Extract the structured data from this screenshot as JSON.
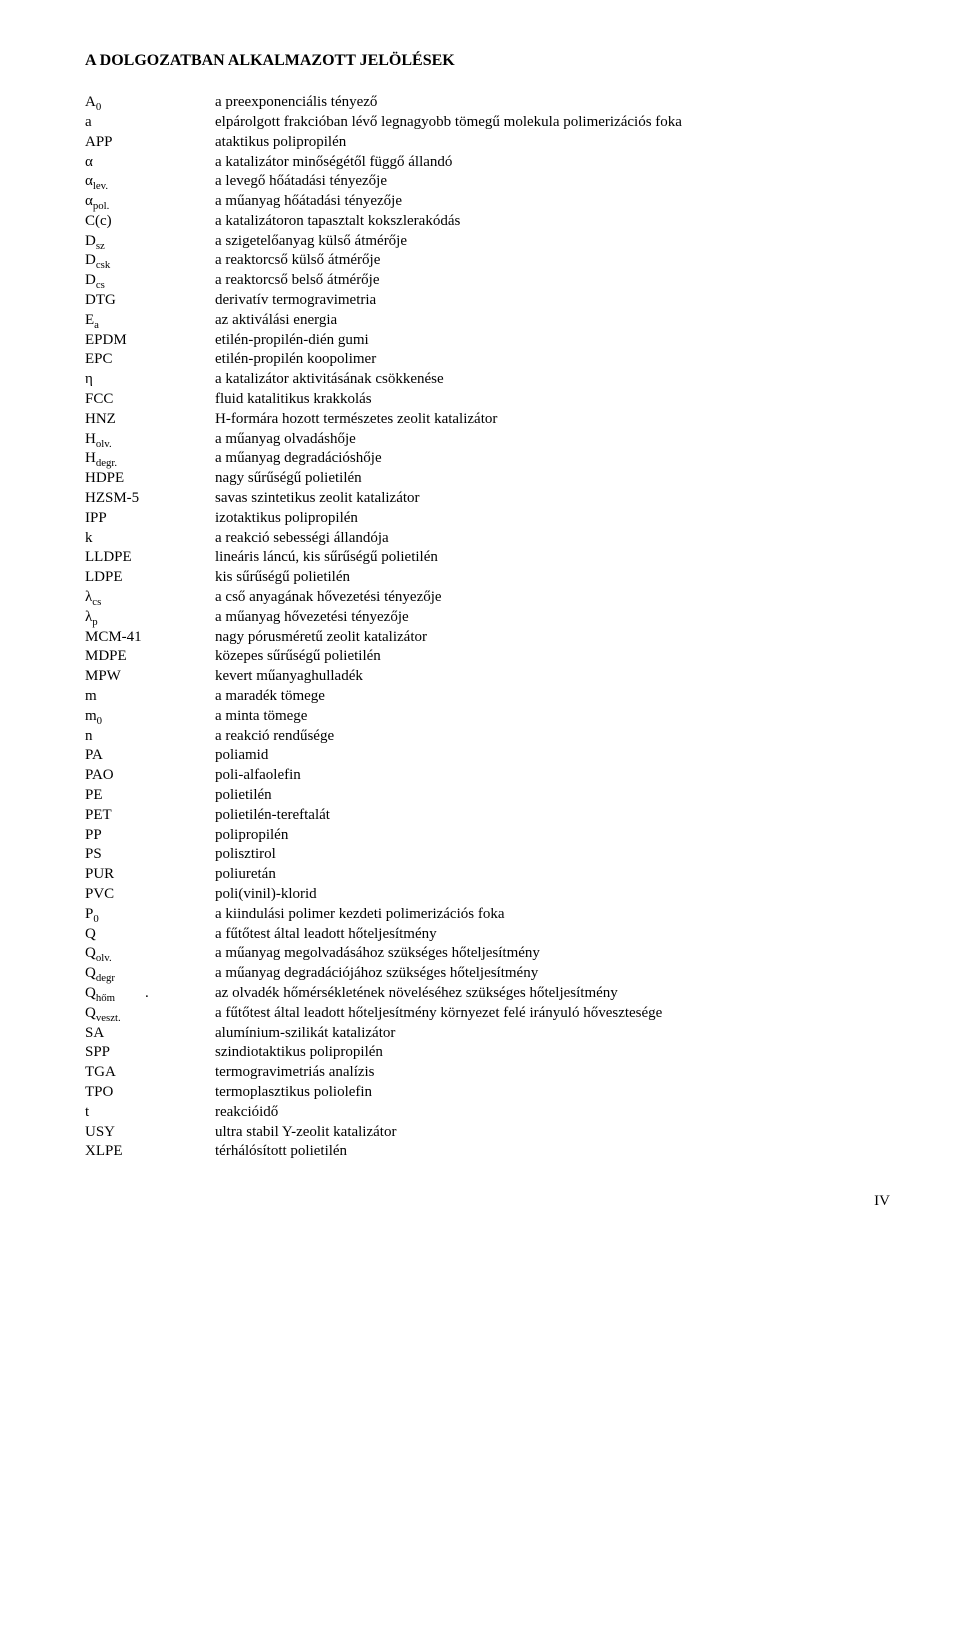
{
  "title": "A DOLGOZATBAN ALKALMAZOTT JELÖLÉSEK",
  "page_number": "IV",
  "rows": [
    {
      "sym_html": "A<span class='sub'>0</span>",
      "def": "a preexponenciális tényező"
    },
    {
      "sym_html": "a",
      "def": "elpárolgott frakcióban lévő legnagyobb tömegű molekula polimerizációs foka"
    },
    {
      "sym_html": "APP",
      "def": "ataktikus polipropilén"
    },
    {
      "sym_html": "α",
      "def": "a katalizátor minőségétől függő állandó"
    },
    {
      "sym_html": "α<span class='sub'>lev.</span>",
      "def": "a levegő hőátadási tényezője"
    },
    {
      "sym_html": "α<span class='sub'>pol.</span>",
      "def": "a műanyag hőátadási tényezője"
    },
    {
      "sym_html": "C(c)",
      "def": "a katalizátoron tapasztalt kokszlerakódás"
    },
    {
      "sym_html": "D<span class='sub'>sz</span>",
      "def": "a szigetelőanyag külső átmérője"
    },
    {
      "sym_html": "D<span class='sub'>csk</span>",
      "def": "a reaktorcső külső átmérője"
    },
    {
      "sym_html": "D<span class='sub'>cs</span>",
      "def": "a reaktorcső belső átmérője"
    },
    {
      "sym_html": "DTG",
      "def": "derivatív termogravimetria"
    },
    {
      "sym_html": "E<span class='sub'>a</span>",
      "def": "az aktiválási energia"
    },
    {
      "sym_html": "EPDM",
      "def": "etilén-propilén-dién gumi"
    },
    {
      "sym_html": "EPC",
      "def": "etilén-propilén koopolimer"
    },
    {
      "sym_html": "η",
      "def": "a katalizátor aktivitásának csökkenése"
    },
    {
      "sym_html": "FCC",
      "def": "fluid katalitikus krakkolás"
    },
    {
      "sym_html": "HNZ",
      "def": "H-formára hozott természetes zeolit katalizátor"
    },
    {
      "sym_html": "H<span class='sub'>olv.</span>",
      "def": "a műanyag olvadáshője"
    },
    {
      "sym_html": "H<span class='sub'>degr.</span>",
      "def": "a műanyag degradációshője"
    },
    {
      "sym_html": "HDPE",
      "def": "nagy sűrűségű polietilén"
    },
    {
      "sym_html": "HZSM-5",
      "def": "savas szintetikus zeolit katalizátor"
    },
    {
      "sym_html": "IPP",
      "def": "izotaktikus polipropilén"
    },
    {
      "sym_html": "k",
      "def": "a reakció sebességi állandója"
    },
    {
      "sym_html": "LLDPE",
      "def": "lineáris láncú, kis sűrűségű polietilén"
    },
    {
      "sym_html": "LDPE",
      "def": "kis sűrűségű polietilén"
    },
    {
      "sym_html": "λ<span class='sub'>cs</span>",
      "def": "a cső anyagának hővezetési tényezője"
    },
    {
      "sym_html": "λ<span class='sub'>p</span>",
      "def": "a műanyag hővezetési tényezője"
    },
    {
      "sym_html": "MCM-41",
      "def": "nagy pórusméretű zeolit katalizátor"
    },
    {
      "sym_html": "MDPE",
      "def": "közepes sűrűségű polietilén"
    },
    {
      "sym_html": "MPW",
      "def": "kevert műanyaghulladék"
    },
    {
      "sym_html": "m",
      "def": "a maradék tömege"
    },
    {
      "sym_html": "m<span class='sub'>0</span>",
      "def": "a minta tömege"
    },
    {
      "sym_html": "n",
      "def": "a reakció rendűsége"
    },
    {
      "sym_html": "PA",
      "def": "poliamid"
    },
    {
      "sym_html": "PAO",
      "def": "poli-alfaolefin"
    },
    {
      "sym_html": "PE",
      "def": "polietilén"
    },
    {
      "sym_html": "PET",
      "def": "polietilén-tereftalát"
    },
    {
      "sym_html": "PP",
      "def": "polipropilén"
    },
    {
      "sym_html": "PS",
      "def": "polisztirol"
    },
    {
      "sym_html": "PUR",
      "def": "poliuretán"
    },
    {
      "sym_html": "PVC",
      "def": "poli(vinil)-klorid"
    },
    {
      "sym_html": "P<span class='sub'>0</span>",
      "def": "a kiindulási polimer kezdeti polimerizációs foka"
    },
    {
      "sym_html": "Q",
      "def": "a fűtőtest által leadott hőteljesítmény"
    },
    {
      "sym_html": "Q<span class='sub'>olv.</span>",
      "def": "a műanyag megolvadásához szükséges hőteljesítmény"
    },
    {
      "sym_html": "Q<span class='sub'>degr</span>",
      "def": "a műanyag degradációjához szükséges hőteljesítmény"
    },
    {
      "sym_html": "Q<span class='sub'>hőm</span>&nbsp;&nbsp;&nbsp;&nbsp;&nbsp;&nbsp;&nbsp;&nbsp;.",
      "def": "az olvadék hőmérsékletének növeléséhez szükséges hőteljesítmény"
    },
    {
      "sym_html": "Q<span class='sub'>veszt.</span>",
      "def": "a fűtőtest által leadott hőteljesítmény környezet felé irányuló hővesztesége"
    },
    {
      "sym_html": "SA",
      "def": "alumínium-szilikát katalizátor"
    },
    {
      "sym_html": "SPP",
      "def": "szindiotaktikus polipropilén"
    },
    {
      "sym_html": "TGA",
      "def": "termogravimetriás analízis"
    },
    {
      "sym_html": "TPO",
      "def": "termoplasztikus poliolefin"
    },
    {
      "sym_html": "t",
      "def": "reakcióidő"
    },
    {
      "sym_html": "USY",
      "def": "ultra stabil Y-zeolit katalizátor"
    },
    {
      "sym_html": "XLPE",
      "def": "térhálósított polietilén"
    }
  ]
}
